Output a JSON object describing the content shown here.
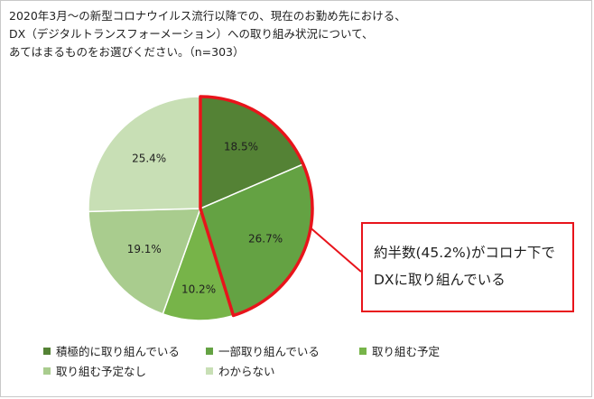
{
  "question": {
    "lines": [
      "2020年3月～の新型コロナウイルス流行以降での、現在のお勤め先における、",
      "DX（デジタルトランスフォーメーション）への取り組み状況について、",
      "あてはまるものをお選びください。（n=303）"
    ]
  },
  "callout": {
    "line1": "約半数(45.2%)がコロナ下で",
    "line2": "DXに取り組んでいる",
    "border_color": "#e8141b"
  },
  "chart_data": {
    "type": "pie",
    "n": 303,
    "start_angle_deg": 0,
    "direction": "clockwise",
    "slices": [
      {
        "label": "積極的に取り組んでいる",
        "value": 18.5,
        "display": "18.5%",
        "color": "#548235"
      },
      {
        "label": "一部取り組んでいる",
        "value": 26.7,
        "display": "26.7%",
        "color": "#64a243"
      },
      {
        "label": "取り組む予定",
        "value": 10.2,
        "display": "10.2%",
        "color": "#77b449"
      },
      {
        "label": "取り組む予定なし",
        "value": 19.1,
        "display": "19.1%",
        "color": "#a9cc8e"
      },
      {
        "label": "わからない",
        "value": 25.4,
        "display": "25.4%",
        "color": "#c8dfb5"
      }
    ],
    "highlight": {
      "slices": [
        0,
        1
      ],
      "total_display": "45.2%",
      "color": "#e8141b"
    }
  }
}
